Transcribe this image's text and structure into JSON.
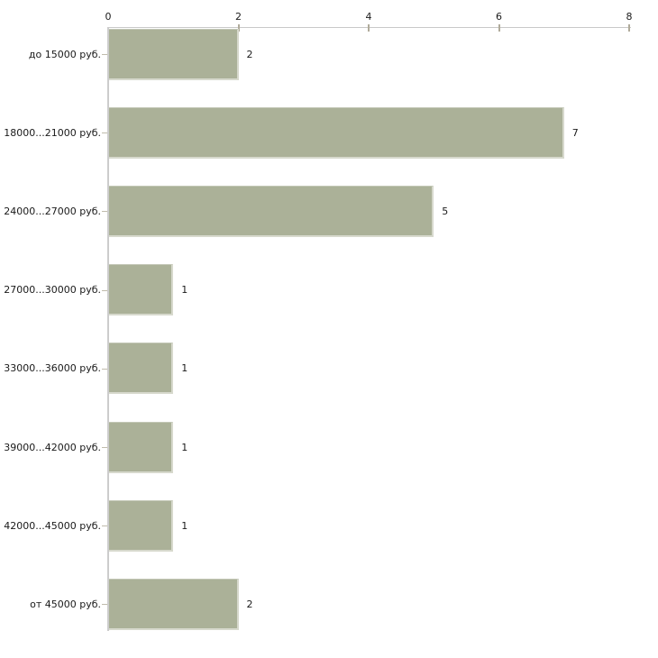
{
  "chart_data": {
    "type": "bar",
    "orientation": "horizontal",
    "title": "",
    "xlabel": "",
    "ylabel": "",
    "categories": [
      "до 15000 руб.",
      "18000...21000 руб.",
      "24000...27000 руб.",
      "27000...30000 руб.",
      "33000...36000 руб.",
      "39000...42000 руб.",
      "42000...45000 руб.",
      "от 45000 руб."
    ],
    "values": [
      2,
      7,
      5,
      1,
      1,
      1,
      1,
      2
    ],
    "value_labels": [
      "2",
      "7",
      "5",
      "1",
      "1",
      "1",
      "1",
      "2"
    ],
    "xlim": [
      0,
      8
    ],
    "x_ticks": [
      0,
      2,
      4,
      6,
      8
    ],
    "axis_position": "top",
    "grid": false,
    "legend": false,
    "bar_color": "#abb198",
    "axis_line_color": "#cccccc",
    "text_color": "#1a1a1a",
    "background_color": "#ffffff"
  }
}
